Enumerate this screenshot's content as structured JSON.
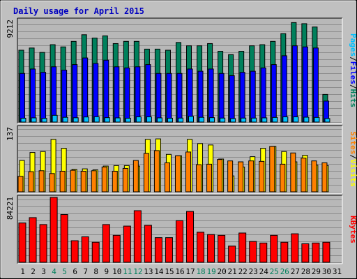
{
  "colors": {
    "background": "#c0c0c0",
    "plot_bg": "#b8b8b8",
    "gridline": "#8c8c8c",
    "title": "#0000c0",
    "hits": "#00805c",
    "files": "#0000ff",
    "pages": "#00c0ff",
    "visits": "#ffff00",
    "sites": "#ff8000",
    "kbytes": "#ff0000",
    "weekend_label": "#00805c",
    "weekday_label": "#000000",
    "outline": "#000000"
  },
  "chart_data": {
    "type": "bar",
    "title": "Daily usage for April 2015",
    "days": [
      "1",
      "2",
      "3",
      "4",
      "5",
      "6",
      "7",
      "8",
      "9",
      "10",
      "11",
      "12",
      "13",
      "14",
      "15",
      "16",
      "17",
      "18",
      "19",
      "20",
      "21",
      "22",
      "23",
      "24",
      "25",
      "26",
      "27",
      "28",
      "29",
      "30",
      "31"
    ],
    "weekend_days": [
      "4",
      "5",
      "11",
      "12",
      "18",
      "19",
      "25",
      "26"
    ],
    "panels": [
      {
        "id": "hits_files_pages",
        "ymax_label": "9212",
        "ymax": 9212,
        "legend": [
          {
            "label": "Pages",
            "color_key": "pages"
          },
          {
            "label": "/",
            "color_key": "outline"
          },
          {
            "label": "Files",
            "color_key": "files"
          },
          {
            "label": "/",
            "color_key": "outline"
          },
          {
            "label": "Hits",
            "color_key": "hits"
          }
        ],
        "series": [
          {
            "name": "Hits",
            "color_key": "hits",
            "values": [
              6500,
              6700,
              6300,
              7000,
              6800,
              7300,
              7900,
              7600,
              7800,
              7100,
              7300,
              7300,
              6600,
              6600,
              6500,
              7200,
              6900,
              6900,
              7100,
              6400,
              6100,
              6400,
              6900,
              7000,
              7300,
              8000,
              9000,
              8900,
              8600,
              2500,
              0
            ]
          },
          {
            "name": "Files",
            "color_key": "files",
            "values": [
              4400,
              4800,
              4500,
              5000,
              4700,
              5200,
              5800,
              5300,
              5600,
              5000,
              4900,
              5000,
              5200,
              4400,
              4400,
              4400,
              4800,
              4600,
              4800,
              4400,
              4200,
              4500,
              4600,
              4900,
              5200,
              6000,
              6900,
              6800,
              6700,
              1900,
              0
            ]
          },
          {
            "name": "Pages",
            "color_key": "pages",
            "values": [
              350,
              380,
              340,
              610,
              430,
              390,
              460,
              480,
              400,
              380,
              350,
              470,
              470,
              380,
              350,
              360,
              520,
              430,
              400,
              360,
              320,
              360,
              360,
              380,
              420,
              470,
              470,
              440,
              420,
              320,
              0
            ]
          }
        ]
      },
      {
        "id": "visits_sites",
        "ymax_label": "137",
        "ymax": 137,
        "legend": [
          {
            "label": "Sites",
            "color_key": "sites"
          },
          {
            "label": "/",
            "color_key": "outline"
          },
          {
            "label": "Visits",
            "color_key": "visits"
          }
        ],
        "series": [
          {
            "name": "Visits",
            "color_key": "visits",
            "values": [
              67,
              84,
              86,
              112,
              93,
              48,
              49,
              47,
              55,
              56,
              56,
              55,
              112,
              113,
              80,
              77,
              112,
              103,
              100,
              70,
              34,
              53,
              75,
              93,
              97,
              86,
              64,
              78,
              57,
              56,
              0
            ]
          },
          {
            "name": "Sites",
            "color_key": "sites",
            "values": [
              33,
              43,
              45,
              39,
              44,
              46,
              44,
              45,
              53,
              44,
              50,
              67,
              82,
              88,
              62,
              77,
              85,
              58,
              59,
              69,
              66,
              64,
              66,
              65,
              97,
              59,
              83,
              72,
              66,
              62,
              0
            ]
          }
        ]
      },
      {
        "id": "kbytes",
        "ymax_label": "84221",
        "ymax": 84221,
        "legend": [
          {
            "label": "KBytes",
            "color_key": "kbytes"
          }
        ],
        "series": [
          {
            "name": "KBytes",
            "color_key": "kbytes",
            "values": [
              51000,
              58000,
              49000,
              84221,
              62000,
              28000,
              33000,
              26000,
              49000,
              35000,
              47000,
              67000,
              48000,
              32000,
              32000,
              54000,
              66000,
              39000,
              36000,
              35000,
              21000,
              38000,
              27000,
              25000,
              35000,
              26000,
              37000,
              24000,
              25000,
              26000,
              0
            ]
          }
        ]
      }
    ]
  }
}
